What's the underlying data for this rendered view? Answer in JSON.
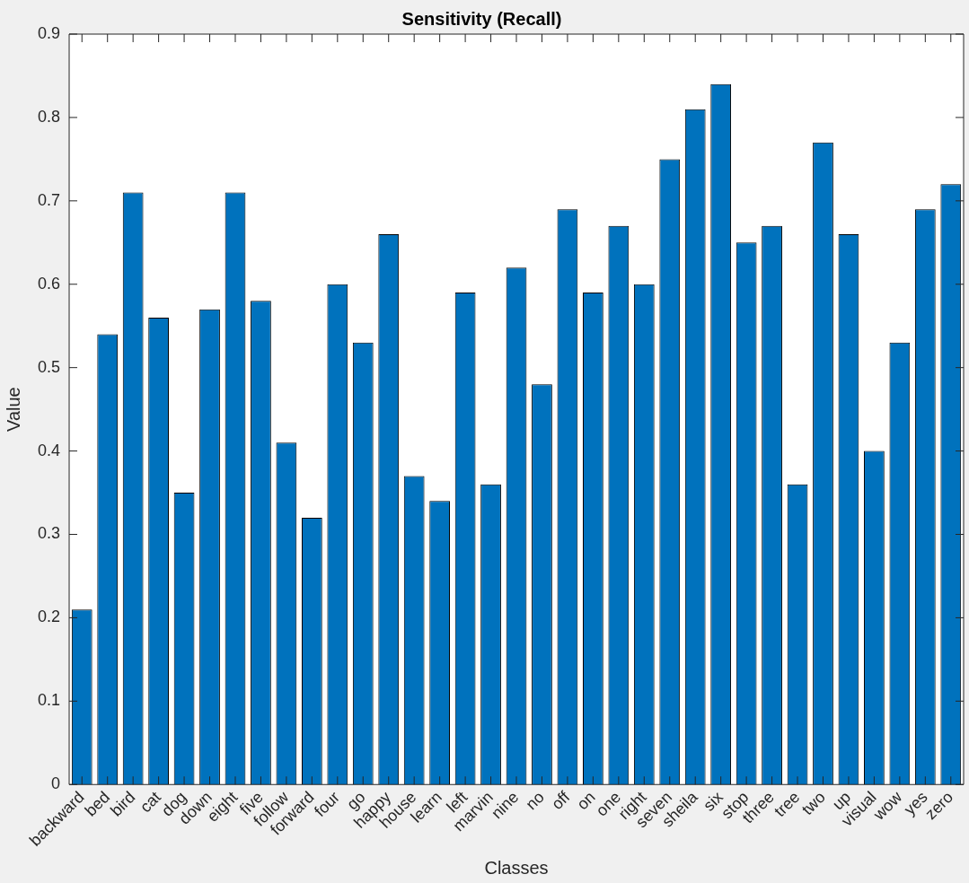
{
  "chart_data": {
    "type": "bar",
    "title": "Sensitivity (Recall)",
    "xlabel": "Classes",
    "ylabel": "Value",
    "categories": [
      "backward",
      "bed",
      "bird",
      "cat",
      "dog",
      "down",
      "eight",
      "five",
      "follow",
      "forward",
      "four",
      "go",
      "happy",
      "house",
      "learn",
      "left",
      "marvin",
      "nine",
      "no",
      "off",
      "on",
      "one",
      "right",
      "seven",
      "sheila",
      "six",
      "stop",
      "three",
      "tree",
      "two",
      "up",
      "visual",
      "wow",
      "yes",
      "zero"
    ],
    "values": [
      0.21,
      0.54,
      0.71,
      0.56,
      0.35,
      0.57,
      0.71,
      0.58,
      0.41,
      0.32,
      0.6,
      0.53,
      0.66,
      0.37,
      0.34,
      0.59,
      0.36,
      0.62,
      0.48,
      0.69,
      0.59,
      0.67,
      0.6,
      0.75,
      0.81,
      0.84,
      0.65,
      0.67,
      0.36,
      0.77,
      0.66,
      0.4,
      0.53,
      0.69,
      0.72
    ],
    "color": "#0072bd",
    "ylim": [
      0,
      0.9
    ],
    "yticks": [
      0,
      0.1,
      0.2,
      0.3,
      0.4,
      0.5,
      0.6,
      0.7,
      0.8,
      0.9
    ],
    "grid": false,
    "legend": false
  }
}
